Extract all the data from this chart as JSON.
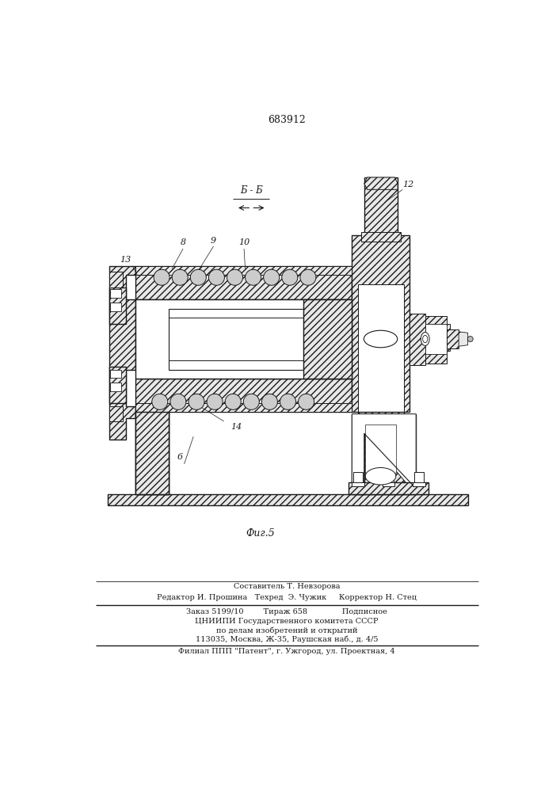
{
  "patent_number": "683912",
  "section_label": "Б - Б",
  "fig_label": "Фиг.5",
  "label_8": "8",
  "label_9": "9",
  "label_10": "10",
  "label_12": "12",
  "label_13": "13",
  "label_14": "14",
  "label_6": "6",
  "footer_line1": "Составитель Т. Невзорова",
  "footer_line2": "Редактор И. Прошина   Техред  Э. Чужик     Корректор Н. Стец",
  "footer_line3": "Заказ 5199/10        Тираж 658              Подписное",
  "footer_line4": "ЦНИИПИ Государственного комитета СССР",
  "footer_line5": "по делам изобретений и открытий",
  "footer_line6": "113035, Москва, Ж-35, Раушская наб., д. 4/5",
  "footer_line7": "Филиал ППП \"Патент\", г. Ужгород, ул. Проектная, 4",
  "bg_color": "#ffffff",
  "line_color": "#1a1a1a",
  "fig_width": 7.07,
  "fig_height": 10.0,
  "dpi": 100
}
